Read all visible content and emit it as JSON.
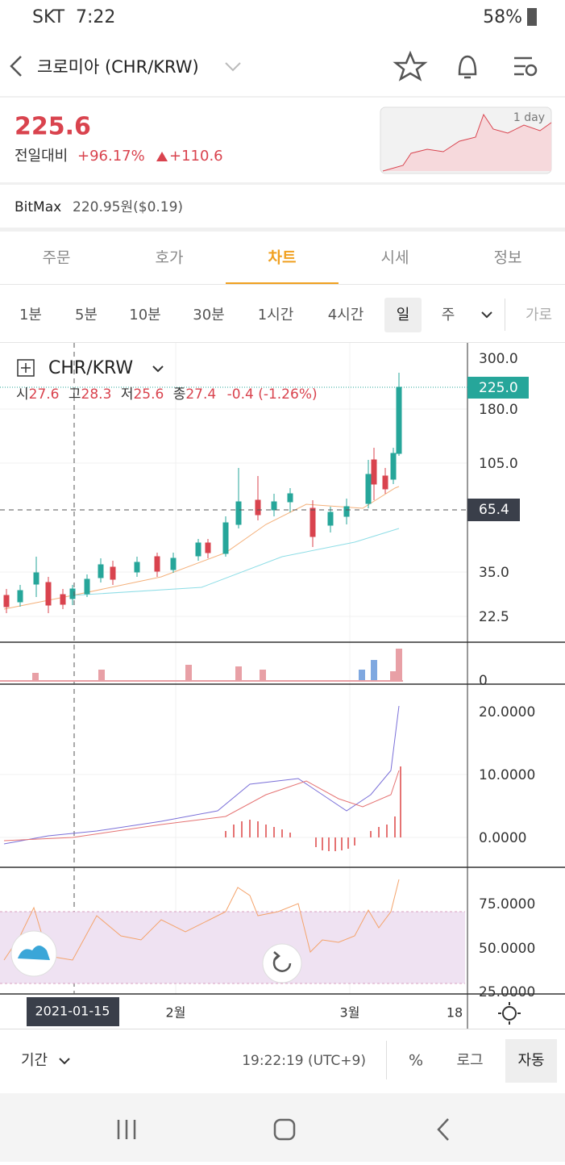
{
  "status": {
    "carrier": "SKT",
    "time": "7:22",
    "battery": "58%"
  },
  "header": {
    "title": "크로미아 (CHR/KRW)"
  },
  "price": {
    "value": "225.6",
    "change_label": "전일대비",
    "change_pct": "+96.17%",
    "change_abs": "+110.6",
    "mini_chart_label": "1 day"
  },
  "exchange": {
    "name": "BitMax",
    "price": "220.95원($0.19)"
  },
  "tabs": [
    "주문",
    "호가",
    "차트",
    "시세",
    "정보"
  ],
  "intervals": [
    "1분",
    "5분",
    "10분",
    "30분",
    "1시간",
    "4시간",
    "일",
    "주"
  ],
  "interval_more": "가로",
  "chart": {
    "symbol": "CHR/KRW",
    "ohlc": [
      "시",
      "27.6",
      "고",
      "28.3",
      "저",
      "25.6",
      "종",
      "27.4",
      "-0.4 (-1.26%)"
    ],
    "price_axis": [
      "300.0",
      "180.0",
      "105.0",
      "35.0",
      "22.5"
    ],
    "current_price": "225.0",
    "crosshair_price": "65.4",
    "volume_axis": [
      "0"
    ],
    "macd_axis": [
      "20.0000",
      "10.0000",
      "0.0000"
    ],
    "rsi_axis": [
      "75.0000",
      "50.0000",
      "25.0000"
    ],
    "x_axis": [
      "2월",
      "3월",
      "18"
    ],
    "crosshair_date": "2021-01-15"
  },
  "footer": {
    "period": "기간",
    "clock": "19:22:19 (UTC+9)",
    "percent": "%",
    "log": "로그",
    "auto": "자동"
  }
}
